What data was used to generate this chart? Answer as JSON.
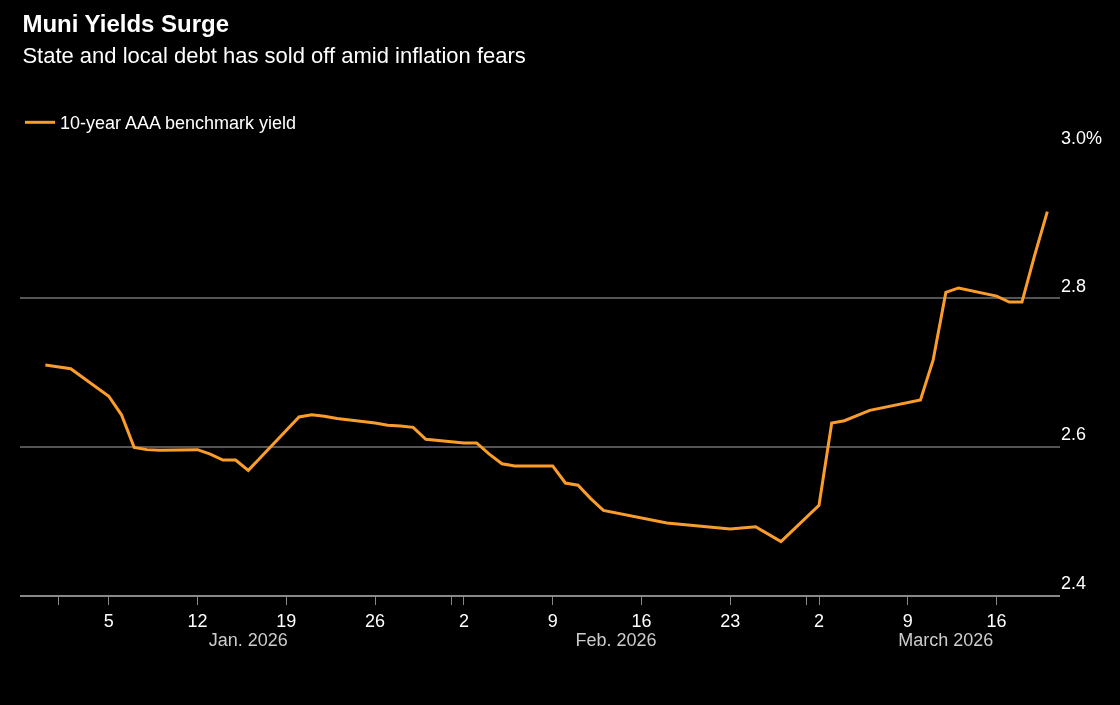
{
  "chart_data": {
    "type": "line",
    "title": "Muni Yields Surge",
    "subtitle": "State and local debt has sold off amid inflation fears",
    "x": [
      "2025-12-31",
      "2026-01-02",
      "2026-01-05",
      "2026-01-06",
      "2026-01-07",
      "2026-01-08",
      "2026-01-09",
      "2026-01-12",
      "2026-01-13",
      "2026-01-14",
      "2026-01-15",
      "2026-01-16",
      "2026-01-20",
      "2026-01-21",
      "2026-01-22",
      "2026-01-23",
      "2026-01-26",
      "2026-01-27",
      "2026-01-28",
      "2026-01-29",
      "2026-01-30",
      "2026-02-02",
      "2026-02-03",
      "2026-02-04",
      "2026-02-05",
      "2026-02-06",
      "2026-02-09",
      "2026-02-10",
      "2026-02-11",
      "2026-02-12",
      "2026-02-13",
      "2026-02-18",
      "2026-02-23",
      "2026-02-25",
      "2026-02-27",
      "2026-03-02",
      "2026-03-03",
      "2026-03-04",
      "2026-03-06",
      "2026-03-10",
      "2026-03-11",
      "2026-03-12",
      "2026-03-13",
      "2026-03-16",
      "2026-03-17",
      "2026-03-18",
      "2026-03-19",
      "2026-03-20"
    ],
    "series": [
      {
        "name": "10-year AAA benchmark yield",
        "color": "#fb9d2a",
        "values": [
          2.71,
          2.705,
          2.668,
          2.643,
          2.599,
          2.596,
          2.595,
          2.596,
          2.59,
          2.582,
          2.582,
          2.568,
          2.64,
          2.643,
          2.641,
          2.638,
          2.632,
          2.629,
          2.628,
          2.626,
          2.61,
          2.605,
          2.605,
          2.59,
          2.577,
          2.574,
          2.574,
          2.551,
          2.548,
          2.53,
          2.514,
          2.497,
          2.489,
          2.492,
          2.472,
          2.521,
          2.632,
          2.635,
          2.649,
          2.663,
          2.717,
          2.808,
          2.814,
          2.803,
          2.795,
          2.795,
          2.858,
          2.917
        ]
      }
    ],
    "xlim": [
      "2025-12-29",
      "2026-03-21"
    ],
    "xticks": [
      {
        "value": "2026-01-01",
        "label": null
      },
      {
        "value": "2026-01-05",
        "label": "5"
      },
      {
        "value": "2026-01-12",
        "label": "12"
      },
      {
        "value": "2026-01-19",
        "label": "19"
      },
      {
        "value": "2026-01-26",
        "label": "26"
      },
      {
        "value": "2026-02-01",
        "label": null
      },
      {
        "value": "2026-02-02",
        "label": "2"
      },
      {
        "value": "2026-02-09",
        "label": "9"
      },
      {
        "value": "2026-02-16",
        "label": "16"
      },
      {
        "value": "2026-02-23",
        "label": "23"
      },
      {
        "value": "2026-03-01",
        "label": null
      },
      {
        "value": "2026-03-02",
        "label": "2"
      },
      {
        "value": "2026-03-09",
        "label": "9"
      },
      {
        "value": "2026-03-16",
        "label": "16"
      }
    ],
    "x2lim": [
      "2025-12-29",
      "2026-03-21"
    ],
    "x2ticks": [
      {
        "value": "2026-01-16",
        "label": "Jan. 2026"
      },
      {
        "value": "2026-02-14",
        "label": "Feb. 2026"
      },
      {
        "value": "2026-03-12",
        "label": "March 2026"
      }
    ],
    "ylim": [
      2.4,
      3.0
    ],
    "yticks": [
      2.4,
      2.6,
      2.8,
      {
        "value": 3.0,
        "label": "3.0%"
      }
    ],
    "grid": "y",
    "legend": "top left",
    "marker": "none",
    "line_style": "solid"
  }
}
